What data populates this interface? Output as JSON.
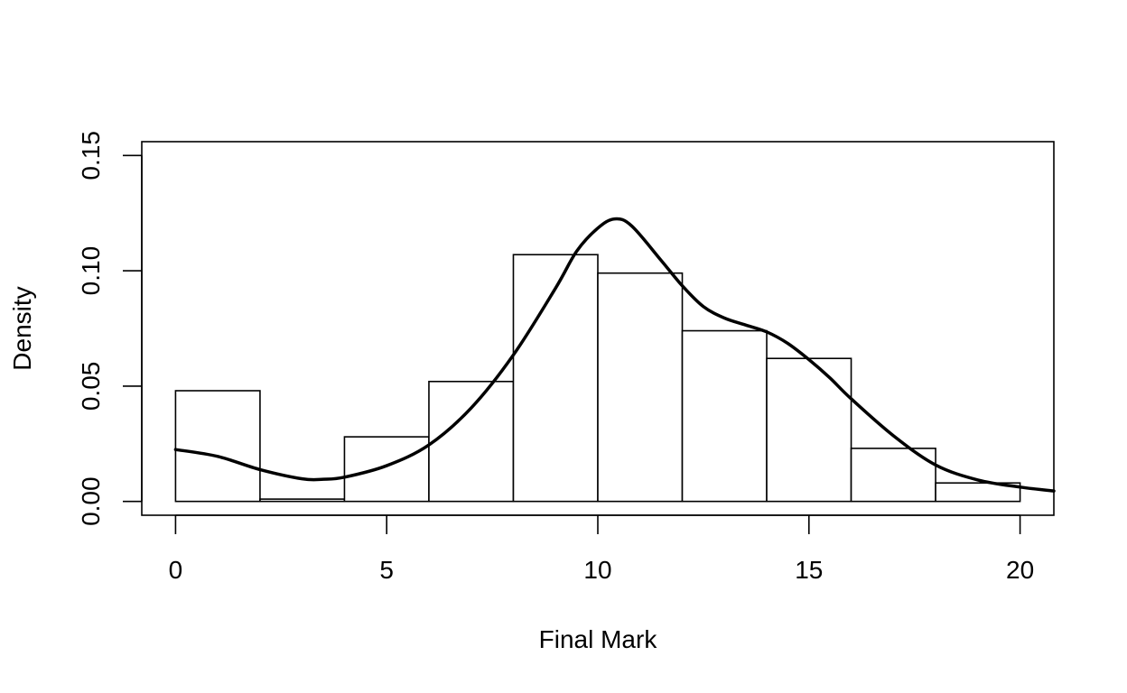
{
  "chart_data": {
    "type": "bar",
    "title": "",
    "xlabel": "Final Mark",
    "ylabel": "Density",
    "xlim": [
      -0.8,
      20.8
    ],
    "ylim": [
      -0.006,
      0.156
    ],
    "x_ticks": [
      0,
      5,
      10,
      15,
      20
    ],
    "x_tick_labels": [
      "0",
      "5",
      "10",
      "15",
      "20"
    ],
    "y_ticks": [
      0.0,
      0.05,
      0.1,
      0.15
    ],
    "y_tick_labels": [
      "0.00",
      "0.05",
      "0.10",
      "0.15"
    ],
    "grid": false,
    "bins": [
      {
        "x0": 0,
        "x1": 2,
        "density": 0.048
      },
      {
        "x0": 2,
        "x1": 4,
        "density": 0.001
      },
      {
        "x0": 4,
        "x1": 6,
        "density": 0.028
      },
      {
        "x0": 6,
        "x1": 8,
        "density": 0.052
      },
      {
        "x0": 8,
        "x1": 10,
        "density": 0.107
      },
      {
        "x0": 10,
        "x1": 12,
        "density": 0.099
      },
      {
        "x0": 12,
        "x1": 14,
        "density": 0.074
      },
      {
        "x0": 14,
        "x1": 16,
        "density": 0.062
      },
      {
        "x0": 16,
        "x1": 18,
        "density": 0.023
      },
      {
        "x0": 18,
        "x1": 20,
        "density": 0.008
      }
    ],
    "density_curve": {
      "x": [
        0,
        1,
        2,
        3,
        3.5,
        4,
        5,
        6,
        7,
        8,
        9,
        9.5,
        10,
        10.4,
        10.8,
        11.5,
        12,
        12.5,
        13,
        13.5,
        14,
        14.5,
        15,
        15.5,
        16,
        17,
        18,
        19,
        20,
        20.8
      ],
      "y": [
        0.0225,
        0.0195,
        0.0138,
        0.0098,
        0.0096,
        0.0105,
        0.0155,
        0.0245,
        0.0405,
        0.0635,
        0.0925,
        0.1085,
        0.1185,
        0.1225,
        0.1195,
        0.1045,
        0.0935,
        0.0845,
        0.0795,
        0.0765,
        0.0735,
        0.0685,
        0.0615,
        0.0535,
        0.0445,
        0.0285,
        0.0158,
        0.0093,
        0.0062,
        0.0045
      ]
    }
  }
}
